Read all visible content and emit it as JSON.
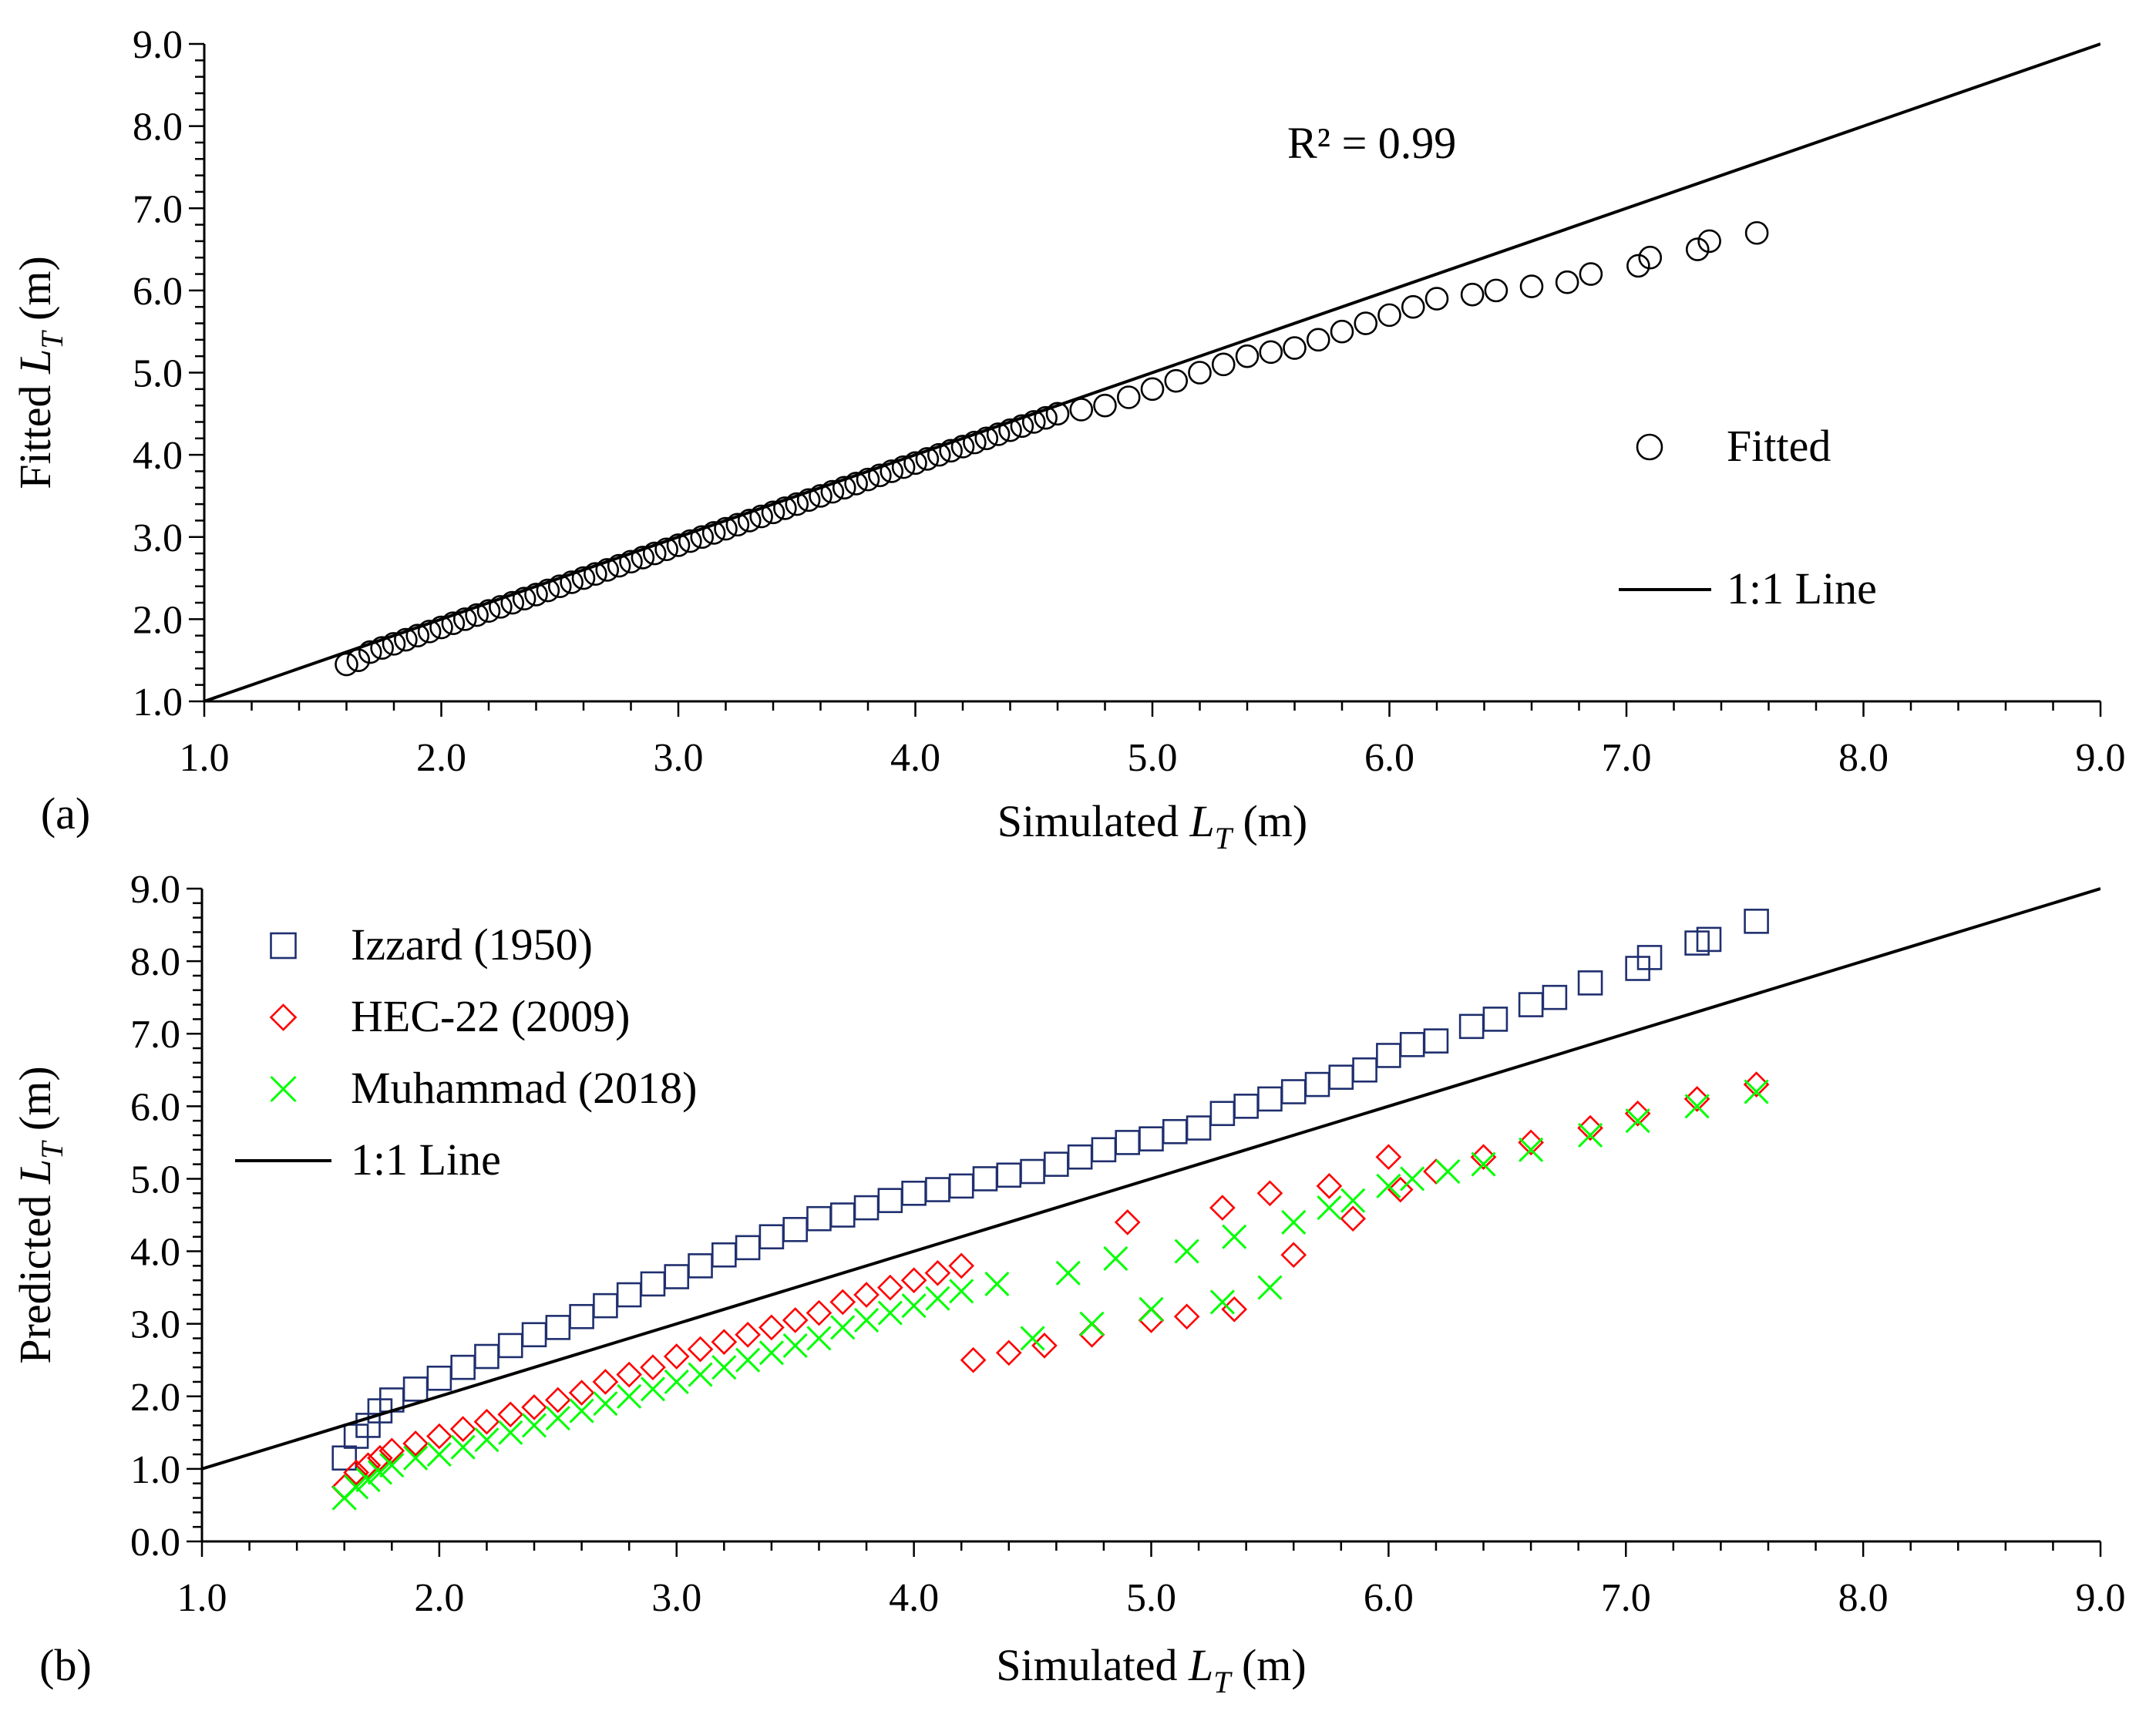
{
  "chart_data": [
    {
      "panel": "(a)",
      "type": "scatter",
      "xlabel": {
        "pre": "Simulated ",
        "var": "L",
        "sub": "T",
        "post": " (m)"
      },
      "ylabel": {
        "pre": "Fitted ",
        "var": "L",
        "sub": "T",
        "post": " (m)"
      },
      "xlim": [
        1.0,
        9.0
      ],
      "ylim": [
        1.0,
        9.0
      ],
      "xticks": [
        "1.0",
        "2.0",
        "3.0",
        "4.0",
        "5.0",
        "6.0",
        "7.0",
        "8.0",
        "9.0"
      ],
      "yticks": [
        "1.0",
        "2.0",
        "3.0",
        "4.0",
        "5.0",
        "6.0",
        "7.0",
        "8.0",
        "9.0"
      ],
      "grid": false,
      "legend_position": "right",
      "annotation": "R² = 0.99",
      "series": [
        {
          "name": "Fitted",
          "marker": "circle",
          "color": "#000000",
          "x": [
            1.6,
            1.65,
            1.7,
            1.75,
            1.8,
            1.85,
            1.9,
            1.95,
            2.0,
            2.05,
            2.1,
            2.15,
            2.2,
            2.25,
            2.3,
            2.35,
            2.4,
            2.45,
            2.5,
            2.55,
            2.6,
            2.65,
            2.7,
            2.75,
            2.8,
            2.85,
            2.9,
            2.95,
            3.0,
            3.05,
            3.1,
            3.15,
            3.2,
            3.25,
            3.3,
            3.35,
            3.4,
            3.45,
            3.5,
            3.55,
            3.6,
            3.65,
            3.7,
            3.75,
            3.8,
            3.85,
            3.9,
            3.95,
            4.0,
            4.05,
            4.1,
            4.15,
            4.2,
            4.25,
            4.3,
            4.35,
            4.4,
            4.45,
            4.5,
            4.55,
            4.6,
            4.7,
            4.8,
            4.9,
            5.0,
            5.1,
            5.2,
            5.3,
            5.4,
            5.5,
            5.6,
            5.7,
            5.8,
            5.9,
            6.0,
            6.1,
            6.2,
            6.35,
            6.45,
            6.6,
            6.75,
            6.85,
            7.05,
            7.1,
            7.3,
            7.35,
            7.55
          ],
          "y": [
            1.45,
            1.5,
            1.6,
            1.65,
            1.7,
            1.75,
            1.8,
            1.85,
            1.9,
            1.95,
            2.0,
            2.05,
            2.1,
            2.15,
            2.2,
            2.25,
            2.3,
            2.35,
            2.4,
            2.45,
            2.5,
            2.55,
            2.6,
            2.65,
            2.7,
            2.75,
            2.8,
            2.85,
            2.9,
            2.95,
            3.0,
            3.05,
            3.1,
            3.15,
            3.2,
            3.25,
            3.3,
            3.35,
            3.4,
            3.45,
            3.5,
            3.55,
            3.6,
            3.65,
            3.7,
            3.75,
            3.8,
            3.85,
            3.9,
            3.95,
            4.0,
            4.05,
            4.1,
            4.15,
            4.2,
            4.25,
            4.3,
            4.35,
            4.4,
            4.45,
            4.5,
            4.55,
            4.6,
            4.7,
            4.8,
            4.9,
            5.0,
            5.1,
            5.2,
            5.25,
            5.3,
            5.4,
            5.5,
            5.6,
            5.7,
            5.8,
            5.9,
            5.95,
            6.0,
            6.05,
            6.1,
            6.2,
            6.3,
            6.4,
            6.5,
            6.6,
            6.7
          ]
        },
        {
          "name": "1:1 Line",
          "type": "line",
          "color": "#000000",
          "x": [
            1.0,
            9.0
          ],
          "y": [
            1.0,
            9.0
          ]
        }
      ]
    },
    {
      "panel": "(b)",
      "type": "scatter",
      "xlabel": {
        "pre": "Simulated ",
        "var": "L",
        "sub": "T",
        "post": " (m)"
      },
      "ylabel": {
        "pre": "Predicted ",
        "var": "L",
        "sub": "T",
        "post": " (m)"
      },
      "xlim": [
        1.0,
        9.0
      ],
      "ylim": [
        0.0,
        9.0
      ],
      "xticks": [
        "1.0",
        "2.0",
        "3.0",
        "4.0",
        "5.0",
        "6.0",
        "7.0",
        "8.0",
        "9.0"
      ],
      "yticks": [
        "0.0",
        "1.0",
        "2.0",
        "3.0",
        "4.0",
        "5.0",
        "6.0",
        "7.0",
        "8.0",
        "9.0"
      ],
      "grid": false,
      "legend_position": "top-left",
      "series": [
        {
          "name": "Izzard (1950)",
          "marker": "square",
          "color": "#1F2F6E",
          "x": [
            1.6,
            1.65,
            1.7,
            1.75,
            1.8,
            1.9,
            2.0,
            2.1,
            2.2,
            2.3,
            2.4,
            2.5,
            2.6,
            2.7,
            2.8,
            2.9,
            3.0,
            3.1,
            3.2,
            3.3,
            3.4,
            3.5,
            3.6,
            3.7,
            3.8,
            3.9,
            4.0,
            4.1,
            4.2,
            4.3,
            4.4,
            4.5,
            4.6,
            4.7,
            4.8,
            4.9,
            5.0,
            5.1,
            5.2,
            5.3,
            5.4,
            5.5,
            5.6,
            5.7,
            5.8,
            5.9,
            6.0,
            6.1,
            6.2,
            6.35,
            6.45,
            6.6,
            6.7,
            6.85,
            7.05,
            7.1,
            7.3,
            7.35,
            7.55
          ],
          "y": [
            1.15,
            1.45,
            1.6,
            1.8,
            1.95,
            2.1,
            2.25,
            2.4,
            2.55,
            2.7,
            2.85,
            2.95,
            3.1,
            3.25,
            3.4,
            3.55,
            3.65,
            3.8,
            3.95,
            4.05,
            4.2,
            4.3,
            4.45,
            4.5,
            4.6,
            4.7,
            4.8,
            4.85,
            4.9,
            5.0,
            5.05,
            5.1,
            5.2,
            5.3,
            5.4,
            5.5,
            5.55,
            5.65,
            5.7,
            5.9,
            6.0,
            6.1,
            6.2,
            6.3,
            6.4,
            6.5,
            6.7,
            6.85,
            6.9,
            7.1,
            7.2,
            7.4,
            7.5,
            7.7,
            7.9,
            8.05,
            8.25,
            8.3,
            8.55
          ]
        },
        {
          "name": "HEC-22 (2009)",
          "marker": "diamond",
          "color": "#FF0000",
          "x": [
            1.6,
            1.65,
            1.7,
            1.75,
            1.8,
            1.9,
            2.0,
            2.1,
            2.2,
            2.3,
            2.4,
            2.5,
            2.6,
            2.7,
            2.8,
            2.9,
            3.0,
            3.1,
            3.2,
            3.3,
            3.4,
            3.5,
            3.6,
            3.7,
            3.8,
            3.9,
            4.0,
            4.1,
            4.2,
            4.25,
            4.4,
            4.55,
            4.75,
            4.9,
            5.0,
            5.15,
            5.3,
            5.35,
            5.5,
            5.6,
            5.75,
            5.85,
            6.0,
            6.05,
            6.2,
            6.4,
            6.6,
            6.85,
            7.05,
            7.3,
            7.55
          ],
          "y": [
            0.75,
            0.95,
            1.05,
            1.15,
            1.25,
            1.35,
            1.45,
            1.55,
            1.65,
            1.75,
            1.85,
            1.95,
            2.05,
            2.2,
            2.3,
            2.4,
            2.55,
            2.65,
            2.75,
            2.85,
            2.95,
            3.05,
            3.15,
            3.3,
            3.4,
            3.5,
            3.6,
            3.7,
            3.8,
            2.5,
            2.6,
            2.7,
            2.85,
            4.4,
            3.05,
            3.1,
            4.6,
            3.2,
            4.8,
            3.95,
            4.9,
            4.45,
            5.3,
            4.85,
            5.1,
            5.3,
            5.5,
            5.7,
            5.9,
            6.1,
            6.3
          ]
        },
        {
          "name": "Muhammad (2018)",
          "marker": "x",
          "color": "#00FF00",
          "x": [
            1.6,
            1.65,
            1.7,
            1.75,
            1.8,
            1.9,
            2.0,
            2.1,
            2.2,
            2.3,
            2.4,
            2.5,
            2.6,
            2.7,
            2.8,
            2.9,
            3.0,
            3.1,
            3.2,
            3.3,
            3.4,
            3.5,
            3.6,
            3.7,
            3.8,
            3.9,
            4.0,
            4.1,
            4.2,
            4.35,
            4.5,
            4.65,
            4.75,
            4.85,
            5.0,
            5.15,
            5.3,
            5.35,
            5.5,
            5.6,
            5.75,
            5.85,
            6.0,
            6.1,
            6.25,
            6.4,
            6.6,
            6.85,
            7.05,
            7.3,
            7.55
          ],
          "y": [
            0.6,
            0.75,
            0.85,
            0.95,
            1.05,
            1.15,
            1.2,
            1.3,
            1.4,
            1.5,
            1.6,
            1.7,
            1.8,
            1.9,
            2.0,
            2.1,
            2.2,
            2.3,
            2.4,
            2.5,
            2.6,
            2.7,
            2.8,
            2.95,
            3.05,
            3.15,
            3.25,
            3.35,
            3.45,
            3.55,
            2.8,
            3.7,
            3.0,
            3.9,
            3.2,
            4.0,
            3.3,
            4.2,
            3.5,
            4.4,
            4.6,
            4.7,
            4.9,
            5.0,
            5.1,
            5.2,
            5.4,
            5.6,
            5.8,
            6.0,
            6.2
          ]
        },
        {
          "name": "1:1 Line",
          "type": "line",
          "color": "#000000",
          "x": [
            1.0,
            9.0
          ],
          "y": [
            1.0,
            9.0
          ]
        }
      ]
    }
  ]
}
